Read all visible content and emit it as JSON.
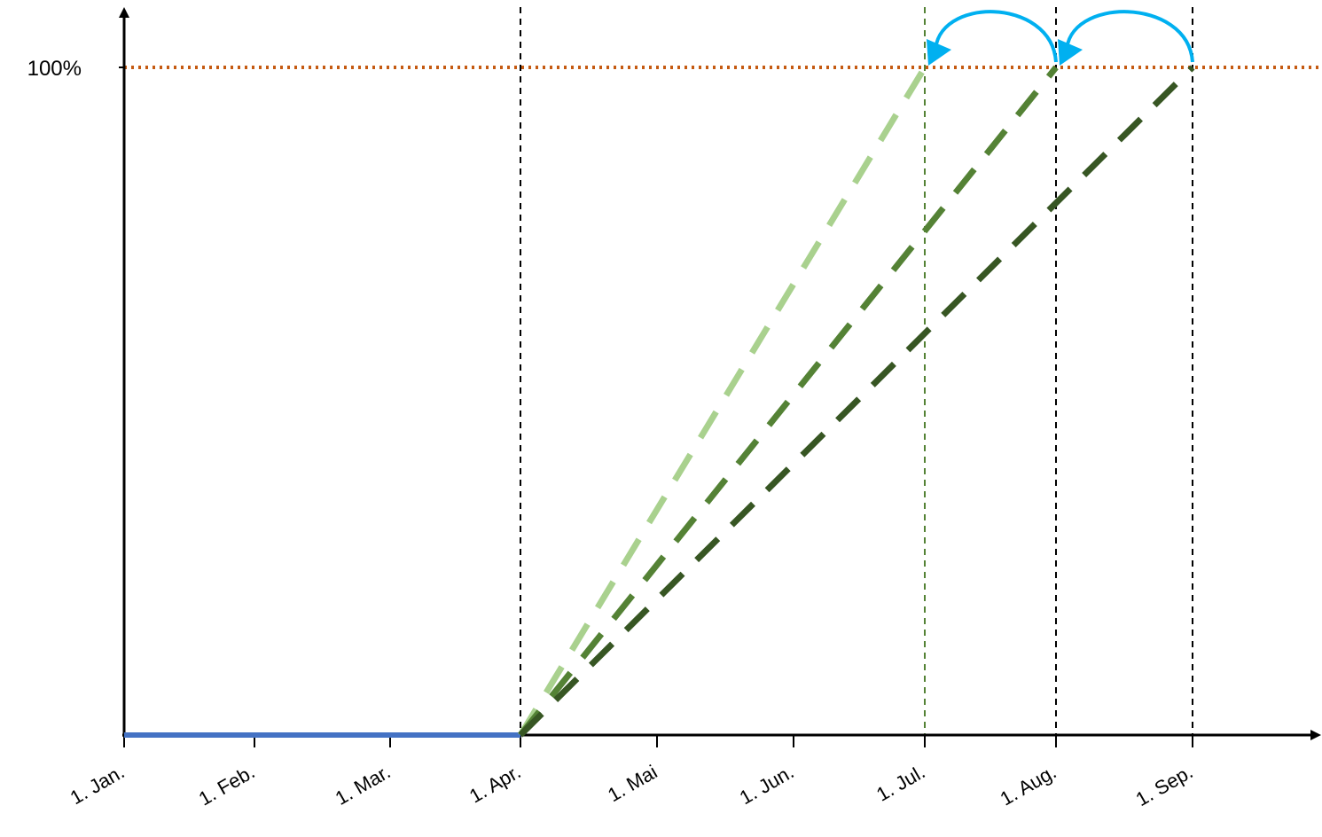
{
  "chart_data": {
    "type": "line",
    "title": "",
    "xlabel": "",
    "ylabel": "",
    "x_tick_labels": [
      "1. Jan.",
      "1. Feb.",
      "1. Mar.",
      "1. Apr.",
      "1. Mai",
      "1. Jun.",
      "1. Jul.",
      "1. Aug.",
      "1. Sep."
    ],
    "y_tick_labels": [
      "100%"
    ],
    "xlim": [
      "1. Jan.",
      "1. Okt."
    ],
    "ylim": [
      0,
      100
    ],
    "grid": false,
    "legend": "none",
    "series": [
      {
        "role": "baseline",
        "color": "#4472C4",
        "style": "solid",
        "x": [
          "1. Jan.",
          "1. Apr."
        ],
        "y": [
          0,
          0
        ]
      },
      {
        "role": "projection-fast",
        "color": "#A9D18E",
        "style": "dashed",
        "x": [
          "1. Apr.",
          "1. Jul."
        ],
        "y": [
          0,
          100
        ]
      },
      {
        "role": "projection-medium",
        "color": "#548235",
        "style": "dashed",
        "x": [
          "1. Apr.",
          "1. Aug."
        ],
        "y": [
          0,
          100
        ]
      },
      {
        "role": "projection-slow",
        "color": "#375623",
        "style": "dashed",
        "x": [
          "1. Apr.",
          "1. Sep."
        ],
        "y": [
          0,
          100
        ]
      }
    ],
    "reference_lines": [
      {
        "orientation": "horizontal",
        "value": 100,
        "color": "#C55A11",
        "style": "dotted"
      },
      {
        "orientation": "vertical",
        "value": "1. Apr.",
        "color": "#000000",
        "style": "dashed"
      },
      {
        "orientation": "vertical",
        "value": "1. Jul.",
        "color": "#548235",
        "style": "dashed"
      },
      {
        "orientation": "vertical",
        "value": "1. Aug.",
        "color": "#000000",
        "style": "dashed"
      },
      {
        "orientation": "vertical",
        "value": "1. Sep.",
        "color": "#000000",
        "style": "dashed"
      }
    ],
    "annotations": [
      {
        "kind": "curved-arrow",
        "from": "1. Sep.",
        "to": "1. Aug.",
        "at": 100,
        "color": "#00B0F0"
      },
      {
        "kind": "curved-arrow",
        "from": "1. Aug.",
        "to": "1. Jul.",
        "at": 100,
        "color": "#00B0F0"
      }
    ]
  }
}
